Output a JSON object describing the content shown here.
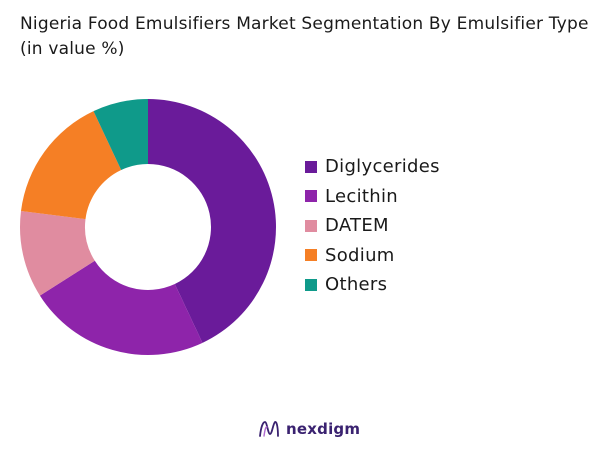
{
  "title": "Nigeria Food Emulsifiers Market Segmentation By Emulsifier Type (in value %)",
  "chart_data": {
    "type": "pie",
    "subtype": "donut",
    "title": "Nigeria Food Emulsifiers Market Segmentation By Emulsifier Type (in value %)",
    "unit": "%",
    "legend_position": "right",
    "categories": [
      "Diglycerides",
      "Lecithin",
      "DATEM",
      "Sodium",
      "Others"
    ],
    "values": [
      43,
      23,
      11,
      16,
      7
    ],
    "colors": [
      "#6a1b9a",
      "#8e24aa",
      "#e08ca0",
      "#f57f25",
      "#0f9a8a"
    ]
  },
  "brand": {
    "name": "nexdigm",
    "icon": "nexdigm-logo-icon",
    "color": "#3a2270"
  }
}
